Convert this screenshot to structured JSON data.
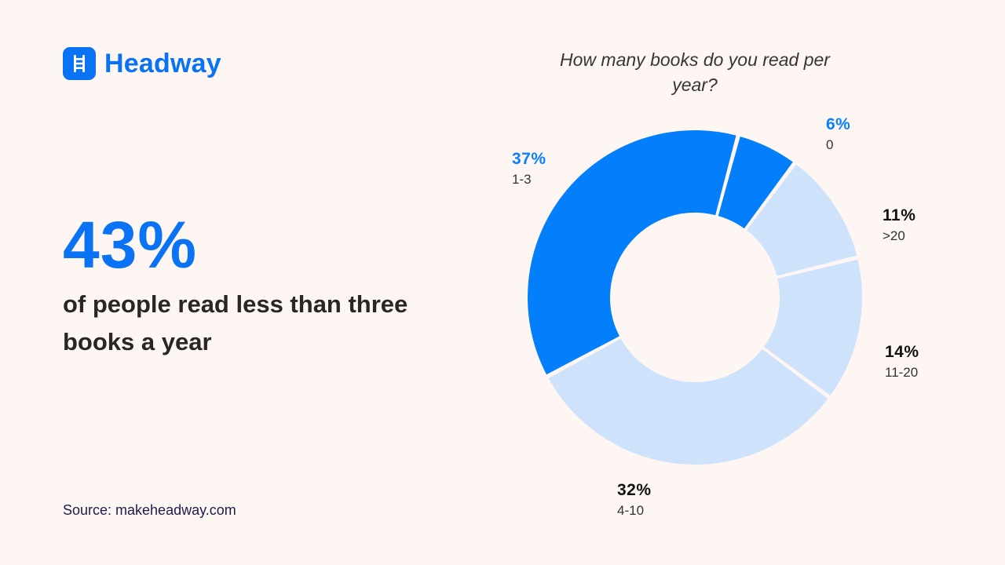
{
  "brand": {
    "name": "Headway",
    "icon": "ladder-icon",
    "color": "#0a73f5"
  },
  "headline": {
    "stat": "43%",
    "text": "of people read less than three books a year"
  },
  "source": "Source: makeheadway.com",
  "chart_data": {
    "type": "pie",
    "style": "donut",
    "title": "How many books do you read per year?",
    "start_angle_deg": 15,
    "direction": "clockwise",
    "slices": [
      {
        "category": "0",
        "value": 6,
        "label": "6%",
        "color": "#037ffc",
        "label_color": "#0a80ff"
      },
      {
        "category": ">20",
        "value": 11,
        "label": "11%",
        "color": "#cfe2fc",
        "label_color": "#111111"
      },
      {
        "category": "11-20",
        "value": 14,
        "label": "14%",
        "color": "#cfe2fc",
        "label_color": "#111111"
      },
      {
        "category": "4-10",
        "value": 32,
        "label": "32%",
        "color": "#cfe2fc",
        "label_color": "#111111"
      },
      {
        "category": "1-3",
        "value": 37,
        "label": "37%",
        "color": "#037ffc",
        "label_color": "#0a80ff"
      }
    ]
  }
}
